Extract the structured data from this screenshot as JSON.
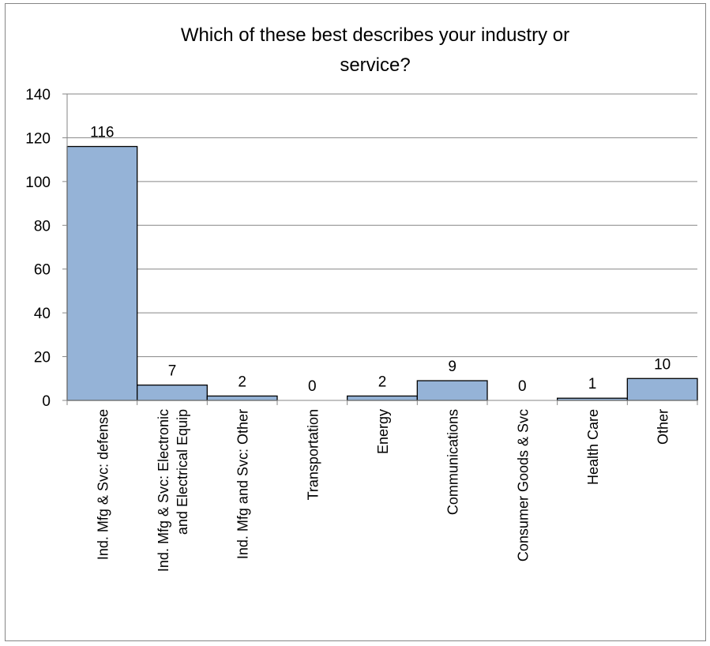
{
  "chart_data": {
    "type": "bar",
    "title": [
      "Which of these best describes your industry or",
      "service?"
    ],
    "categories": [
      [
        "Ind. Mfg & Svc: defense"
      ],
      [
        "Ind. Mfg & Svc: Electronic",
        "and Electrical Equip"
      ],
      [
        "Ind. Mfg and Svc: Other"
      ],
      [
        "Transportation"
      ],
      [
        "Energy"
      ],
      [
        "Communications"
      ],
      [
        "Consumer Goods & Svc"
      ],
      [
        "Health Care"
      ],
      [
        "Other"
      ]
    ],
    "values": [
      116,
      7,
      2,
      0,
      2,
      9,
      0,
      1,
      10
    ],
    "data_labels": [
      "116",
      "7",
      "2",
      "0",
      "2",
      "9",
      "0",
      "1",
      "10"
    ],
    "ylim": [
      0,
      140
    ],
    "yticks": [
      0,
      20,
      40,
      60,
      80,
      100,
      120,
      140
    ],
    "ytick_labels": [
      "0",
      "20",
      "40",
      "60",
      "80",
      "100",
      "120",
      "140"
    ],
    "grid": true,
    "legend": "none",
    "bar_color": "#95b3d7",
    "bar_edge_color": "#000000",
    "grid_color": "#868686"
  }
}
